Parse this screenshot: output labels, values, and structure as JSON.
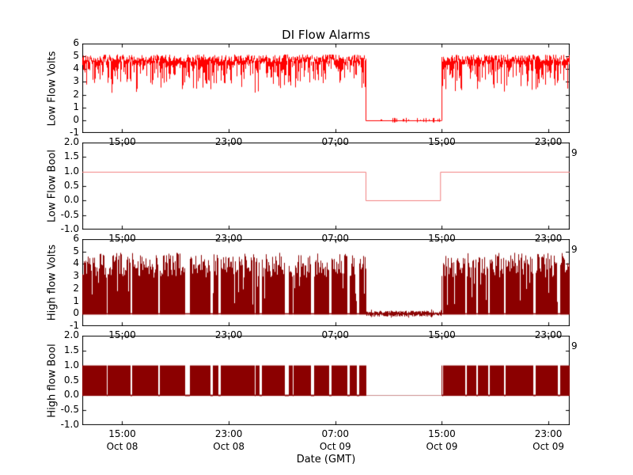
{
  "figure": {
    "title": "DI Flow Alarms",
    "xlabel": "Date (GMT)",
    "background": "#ffffff",
    "axis_color": "#000000",
    "clipped_right_tick_label": "9"
  },
  "x_axis": {
    "span_hours": 36.6,
    "ticks": [
      {
        "hour": 3,
        "time": "15:00",
        "date": "Oct 08"
      },
      {
        "hour": 11,
        "time": "23:00",
        "date": "Oct 08"
      },
      {
        "hour": 19,
        "time": "07:00",
        "date": "Oct 09"
      },
      {
        "hour": 27,
        "time": "15:00",
        "date": "Oct 09"
      },
      {
        "hour": 35,
        "time": "23:00",
        "date": "Oct 09"
      }
    ]
  },
  "chart_data": [
    {
      "type": "line",
      "name": "Low Flow Volts",
      "ylabel": "Low Flow Volts",
      "color": "#ff0000",
      "ylim": [
        -1,
        6
      ],
      "yticks": [
        "6",
        "5",
        "4",
        "3",
        "2",
        "1",
        "0",
        "-1"
      ],
      "signal": {
        "kind": "noisy_band",
        "band_top_range": [
          4.55,
          5.15
        ],
        "typical_dip": 0.8,
        "max_dip": 2.5,
        "dropout": {
          "from_hour": 21.3,
          "to_hour": 26.97,
          "level": 0,
          "noise": 0.15
        }
      }
    },
    {
      "type": "line",
      "name": "Low Flow Bool",
      "ylabel": "Low Flow Bool",
      "color": "#f08080",
      "ylim": [
        -1,
        2
      ],
      "yticks": [
        "2.0",
        "1.5",
        "1.0",
        "0.5",
        "0.0",
        "-0.5",
        "-1.0"
      ],
      "signal": {
        "kind": "step",
        "points": [
          [
            0,
            1
          ],
          [
            21.3,
            1
          ],
          [
            21.3,
            0
          ],
          [
            26.9,
            0
          ],
          [
            26.9,
            1
          ],
          [
            36.6,
            1
          ]
        ]
      }
    },
    {
      "type": "line",
      "name": "High flow Volts",
      "ylabel": "High flow Volts",
      "color": "#8b0000",
      "ylim": [
        -1,
        6
      ],
      "yticks": [
        "6",
        "5",
        "4",
        "3",
        "2",
        "1",
        "0",
        "-1"
      ],
      "signal": {
        "kind": "burst_band",
        "burst_top_range": [
          2.9,
          4.9
        ],
        "base": 0,
        "dropout": {
          "from_hour": 21.3,
          "to_hour": 26.97,
          "level": 0,
          "noise": 0.2
        }
      }
    },
    {
      "type": "line",
      "name": "High flow Bool",
      "ylabel": "High flow Bool",
      "color": "#8b0000",
      "ylim": [
        -1,
        2
      ],
      "yticks": [
        "2.0",
        "1.5",
        "1.0",
        "0.5",
        "0.0",
        "-0.5",
        "-1.0"
      ],
      "signal": {
        "kind": "burst_bool",
        "high": 1,
        "low": 0,
        "dropout": {
          "from_hour": 21.3,
          "to_hour": 26.97,
          "level": 0
        }
      }
    }
  ]
}
